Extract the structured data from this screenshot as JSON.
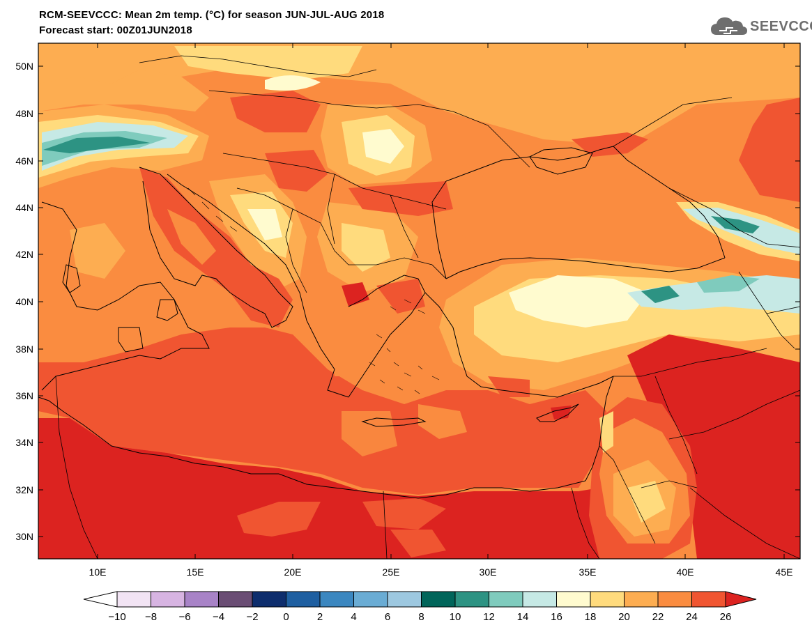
{
  "header": {
    "title_line1": "RCM-SEEVCCC: Mean 2m temp. (°C) for season JUN-JUL-AUG 2018",
    "title_line2": "Forecast start: 00Z01JUN2018"
  },
  "logo": {
    "text": "SEEVCCC",
    "icon": "cloud-icon"
  },
  "map": {
    "lat_labels": [
      "50N",
      "48N",
      "46N",
      "44N",
      "42N",
      "40N",
      "38N",
      "36N",
      "34N",
      "32N",
      "30N"
    ],
    "lon_labels": [
      "10E",
      "15E",
      "20E",
      "25E",
      "30E",
      "35E",
      "40E",
      "45E"
    ]
  },
  "colorbar": {
    "labels": [
      "−10",
      "−8",
      "−6",
      "−4",
      "−2",
      "0",
      "2",
      "4",
      "6",
      "8",
      "10",
      "12",
      "14",
      "16",
      "18",
      "20",
      "22",
      "24",
      "26"
    ],
    "colors": [
      "#f2e4f4",
      "#d7b4e2",
      "#a883c7",
      "#6a4d74",
      "#0d2d6d",
      "#1e5fa1",
      "#3b87c0",
      "#6aacd4",
      "#9dc8e0",
      "#00655a",
      "#2d9383",
      "#7fcbbd",
      "#c6e9e5",
      "#fffbcf",
      "#ffdb7d",
      "#fdad51",
      "#fa8c40",
      "#f05531"
    ],
    "under_color": "#ffffff",
    "over_color": "#dc2320"
  }
}
